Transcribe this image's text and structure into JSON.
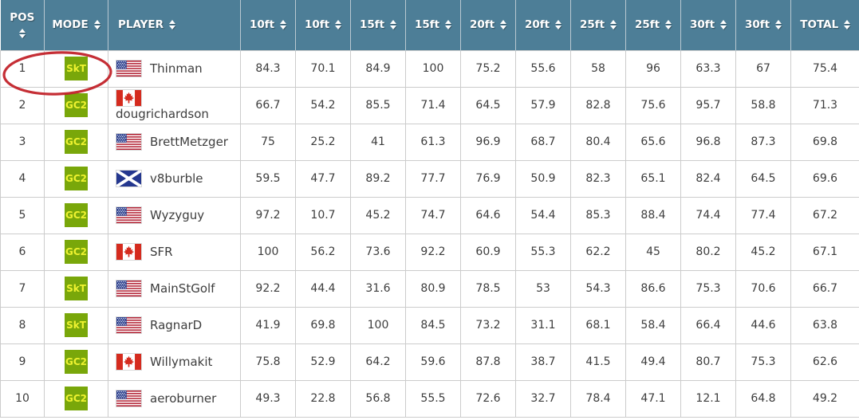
{
  "colors": {
    "header_bg": "#4d7e97",
    "header_separator": "#b9c8d1",
    "badge_bg": "#79a70a",
    "badge_text": "#eef230",
    "annotation_stroke": "#c2232a",
    "cell_border": "#cccccc",
    "cell_text": "#3d3d3d"
  },
  "table": {
    "headers": [
      {
        "key": "pos",
        "label": "POS",
        "two_line": true
      },
      {
        "key": "mode",
        "label": "MODE"
      },
      {
        "key": "player",
        "label": "PLAYER"
      },
      {
        "key": "10ft-1",
        "label": "10ft"
      },
      {
        "key": "10ft-2",
        "label": "10ft"
      },
      {
        "key": "15ft-1",
        "label": "15ft"
      },
      {
        "key": "15ft-2",
        "label": "15ft"
      },
      {
        "key": "20ft-1",
        "label": "20ft"
      },
      {
        "key": "20ft-2",
        "label": "20ft"
      },
      {
        "key": "25ft-1",
        "label": "25ft"
      },
      {
        "key": "25ft-2",
        "label": "25ft"
      },
      {
        "key": "30ft-1",
        "label": "30ft"
      },
      {
        "key": "30ft-2",
        "label": "30ft"
      },
      {
        "key": "total",
        "label": "TOTAL"
      }
    ],
    "rows": [
      {
        "pos": "1",
        "mode": "SkT",
        "flag": "us",
        "player": "Thinman",
        "values": [
          "84.3",
          "70.1",
          "84.9",
          "100",
          "75.2",
          "55.6",
          "58",
          "96",
          "63.3",
          "67",
          "75.4"
        ]
      },
      {
        "pos": "2",
        "mode": "GC2",
        "flag": "ca",
        "player": "dougrichardson",
        "values": [
          "66.7",
          "54.2",
          "85.5",
          "71.4",
          "64.5",
          "57.9",
          "82.8",
          "75.6",
          "95.7",
          "58.8",
          "71.3"
        ]
      },
      {
        "pos": "3",
        "mode": "GC2",
        "flag": "us",
        "player": "BrettMetzger",
        "values": [
          "75",
          "25.2",
          "41",
          "61.3",
          "96.9",
          "68.7",
          "80.4",
          "65.6",
          "96.8",
          "87.3",
          "69.8"
        ]
      },
      {
        "pos": "4",
        "mode": "GC2",
        "flag": "sct",
        "player": "v8burble",
        "values": [
          "59.5",
          "47.7",
          "89.2",
          "77.7",
          "76.9",
          "50.9",
          "82.3",
          "65.1",
          "82.4",
          "64.5",
          "69.6"
        ]
      },
      {
        "pos": "5",
        "mode": "GC2",
        "flag": "us",
        "player": "Wyzyguy",
        "values": [
          "97.2",
          "10.7",
          "45.2",
          "74.7",
          "64.6",
          "54.4",
          "85.3",
          "88.4",
          "74.4",
          "77.4",
          "67.2"
        ]
      },
      {
        "pos": "6",
        "mode": "GC2",
        "flag": "ca",
        "player": "SFR",
        "values": [
          "100",
          "56.2",
          "73.6",
          "92.2",
          "60.9",
          "55.3",
          "62.2",
          "45",
          "80.2",
          "45.2",
          "67.1"
        ]
      },
      {
        "pos": "7",
        "mode": "SkT",
        "flag": "us",
        "player": "MainStGolf",
        "values": [
          "92.2",
          "44.4",
          "31.6",
          "80.9",
          "78.5",
          "53",
          "54.3",
          "86.6",
          "75.3",
          "70.6",
          "66.7"
        ]
      },
      {
        "pos": "8",
        "mode": "SkT",
        "flag": "us",
        "player": "RagnarD",
        "values": [
          "41.9",
          "69.8",
          "100",
          "84.5",
          "73.2",
          "31.1",
          "68.1",
          "58.4",
          "66.4",
          "44.6",
          "63.8"
        ]
      },
      {
        "pos": "9",
        "mode": "GC2",
        "flag": "ca",
        "player": "Willymakit",
        "values": [
          "75.8",
          "52.9",
          "64.2",
          "59.6",
          "87.8",
          "38.7",
          "41.5",
          "49.4",
          "80.7",
          "75.3",
          "62.6"
        ]
      },
      {
        "pos": "10",
        "mode": "GC2",
        "flag": "us",
        "player": "aeroburner",
        "values": [
          "49.3",
          "22.8",
          "56.8",
          "55.5",
          "72.6",
          "32.7",
          "78.4",
          "47.1",
          "12.1",
          "64.8",
          "49.2"
        ]
      }
    ]
  },
  "icons": {
    "sort": "sort-up-down-arrows",
    "flags": {
      "us": "united-states-flag",
      "ca": "canada-flag",
      "sct": "scotland-flag"
    }
  },
  "annotation": {
    "shape": "ellipse",
    "circled": "row 1 POS and MODE",
    "color": "#c2232a"
  }
}
